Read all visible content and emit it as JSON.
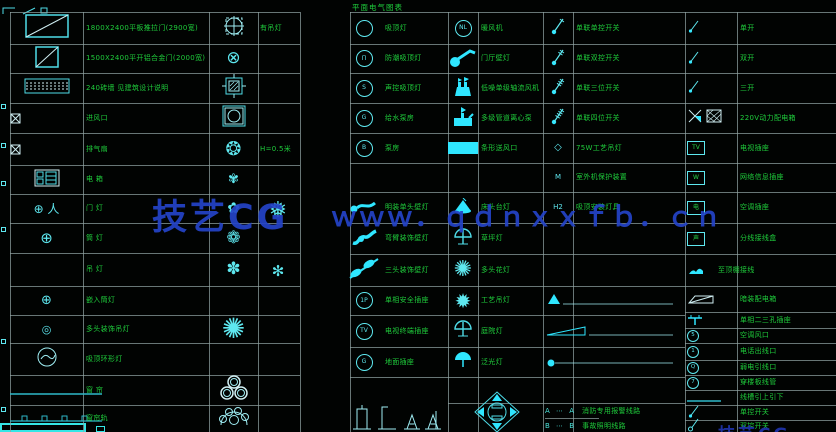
{
  "title": "平面电气图表",
  "watermark": {
    "brand": "技艺CG",
    "url": "ｗｗｗ．ｑｄｎｘｘｆｂ．ｃｎ",
    "color": "#2444c8"
  },
  "corner_text": "技艺CG",
  "colors": {
    "background": "#010302",
    "grid": "#90a4a4",
    "label_green": "#1fce3c",
    "symbol_cyan": "#5ee8f0",
    "symbol_fill": "#2fe6ff",
    "watermark_blue": "#2444c8"
  },
  "left_rows": [
    {
      "s1": {
        "shape": "rectDiagL"
      },
      "d1": "1800X2400平板推拉门(2900宽)",
      "s2": {
        "shape": "circleCrossSq"
      },
      "d2": "有吊灯"
    },
    {
      "s1": {
        "shape": "rectDiagS"
      },
      "d1": "1500X2400平开铝合金门(2000宽)",
      "s2": {
        "glyph": "⊗",
        "size": 17
      },
      "d2": ""
    },
    {
      "s1": {
        "shape": "hatch"
      },
      "d1": "240砖墙 见建筑设计说明",
      "s2": {
        "shape": "frameBox"
      },
      "d2": ""
    },
    {
      "s1": {
        "shape": "boxX",
        "left": true
      },
      "d1": "进风口",
      "s2": {
        "shape": "boxCircle"
      },
      "d2": ""
    },
    {
      "s1": {
        "shape": "boxX",
        "left": true
      },
      "d1": "排气扇",
      "s2": {
        "glyph": "❂",
        "size": 19
      },
      "d2": "H=0.5米"
    },
    {
      "s1": {
        "shape": "panel"
      },
      "d1": "电  箱",
      "s2": {
        "glyph": "✾",
        "size": 13
      },
      "d2": ""
    },
    {
      "s1": {
        "glyph": "⊕ 人",
        "size": 12
      },
      "d1": "门  灯",
      "s2": {
        "glyph": "✿",
        "size": 15
      },
      "d2": "",
      "d2g": {
        "glyph": "❅",
        "size": 22
      }
    },
    {
      "s1": {
        "glyph": "⊕",
        "size": 15
      },
      "d1": "筒  灯",
      "s2": {
        "glyph": "❁",
        "size": 17
      },
      "d2": ""
    },
    {
      "s1": null,
      "d1": "吊  灯",
      "s2": {
        "glyph": "✽",
        "size": 17
      },
      "d2": "",
      "d2g": {
        "glyph": "✻",
        "size": 15
      }
    },
    {
      "s1": {
        "glyph": "⊕",
        "size": 13
      },
      "d1": "嵌入筒灯",
      "s2": null,
      "d2": ""
    },
    {
      "s1": {
        "glyph": "◎",
        "size": 11
      },
      "d1": "多头装饰吊灯",
      "s2": {
        "glyph": "✺",
        "size": 28
      },
      "d2": ""
    },
    {
      "s1": {
        "shape": "waveCircle"
      },
      "d1": "吸顶环形灯",
      "s2": null,
      "d2": ""
    },
    {
      "s1": {
        "shape": "tealLine",
        "left": true
      },
      "d1": "窗  帘",
      "s2": {
        "shape": "trefoil"
      },
      "d2": ""
    },
    {
      "s1": {
        "shape": "trackLine",
        "left": true
      },
      "d1": "窗帘轨",
      "s2": {
        "shape": "fanCircles"
      },
      "d2": ""
    }
  ],
  "main_rows": [
    {
      "c1s": {
        "circle": ""
      },
      "c1d": "吸顶灯",
      "c2s": {
        "circle": "NL"
      },
      "c2d": "暖风机",
      "c3s": {
        "shape": "sw1"
      },
      "c3d": "单联单控开关",
      "c4s": {
        "shape": "swS"
      },
      "c4d": "单开"
    },
    {
      "c1s": {
        "circle": "Π"
      },
      "c1d": "防潮吸顶灯",
      "c2s": {
        "shape": "ladle"
      },
      "c2d": "门厅壁灯",
      "c3s": {
        "shape": "sw2"
      },
      "c3d": "单联双控开关",
      "c4s": {
        "shape": "swS"
      },
      "c4d": "双开"
    },
    {
      "c1s": {
        "circle": "S"
      },
      "c1d": "声控吸顶灯",
      "c2s": {
        "shape": "pump"
      },
      "c2d": "低噪单级轴流风机",
      "c3s": {
        "shape": "sw3"
      },
      "c3d": "单联三位开关",
      "c4s": {
        "shape": "swS"
      },
      "c4d": "三开"
    },
    {
      "c1s": {
        "circle": "G"
      },
      "c1d": "给水泵房",
      "c2s": {
        "shape": "pump2"
      },
      "c2d": "多级管道离心泵",
      "c3s": {
        "shape": "sw4"
      },
      "c3d": "单联四位开关",
      "c4s": {
        "shape": "xHatch"
      },
      "c4d": "220V动力配电箱"
    },
    {
      "c1s": {
        "circle": "B"
      },
      "c1d": "泵房",
      "c2s": {
        "shape": "solidRect"
      },
      "c2d": "条形送风口",
      "c3s": {
        "glyph": "◇",
        "size": 10
      },
      "c3d": "75W工艺吊灯",
      "c4s": {
        "box": "TV"
      },
      "c4d": "电视插座"
    },
    {
      "c1s": null,
      "c1d": "",
      "c2s": null,
      "c2d": "",
      "c3s": {
        "text": "M"
      },
      "c3d": "室外机保护装置",
      "c4s": {
        "box": "W"
      },
      "c4d": "网络信息插座"
    },
    {
      "c1s": {
        "shape": "ladleDot"
      },
      "c1d": "明装单头壁灯",
      "c2s": {
        "shape": "cone"
      },
      "c2d": "床头台灯",
      "c3s": {
        "text": "H2"
      },
      "c3d": "吸顶安装灯具",
      "c4s": {
        "box": "电"
      },
      "c4d": "空调插座"
    },
    {
      "c1s": {
        "shape": "curveBlob"
      },
      "c1d": "弯臂装饰壁灯",
      "c2s": {
        "shape": "umbrella"
      },
      "c2d": "草坪灯",
      "c3s": null,
      "c3d": "",
      "c4s": {
        "box": "声"
      },
      "c4d": "分线接线盒"
    },
    {
      "c1s": {
        "shape": "dblBlob"
      },
      "c1d": "三头装饰壁灯",
      "c2s": {
        "glyph": "✺",
        "size": 22
      },
      "c2d": "多头花灯",
      "c3s": null,
      "c3d": "",
      "c4s": {
        "shape": "bird"
      },
      "c4d": "至顶棚接线",
      "c4dx": 718
    }
  ],
  "mid_rows": [
    {
      "c1s": {
        "circle": "1P"
      },
      "c1d": "单相安全插座",
      "c2s": {
        "glyph": "✹",
        "size": 20
      },
      "c2d": "工艺吊灯",
      "c3s": {
        "shape": "triLine"
      }
    },
    {
      "c1s": {
        "circle": "TV"
      },
      "c1d": "电视终端插座",
      "c2s": {
        "shape": "umbrella"
      },
      "c2d": "庭院灯",
      "c3s": {
        "shape": "wedgeLine"
      }
    },
    {
      "c1s": {
        "circle": "G"
      },
      "c1d": "地面插座",
      "c2s": {
        "shape": "umbrella2"
      },
      "c2d": "泛光灯",
      "c3s": {
        "shape": "dotLine"
      }
    }
  ],
  "right_rows": [
    {
      "s": {
        "shape": "slopeBox"
      },
      "d": "暗装配电箱"
    },
    {
      "s": {
        "shape": "plugT"
      },
      "d": "单相二三孔插座"
    },
    {
      "s": {
        "circleSmall": "5"
      },
      "d": "空调风口"
    },
    {
      "s": {
        "circleSmall": "1"
      },
      "d": "电话出线口"
    },
    {
      "s": {
        "circleSmall": "Q"
      },
      "d": "弱电引线口"
    },
    {
      "s": {
        "circleSmall": "7"
      },
      "d": "穿楼板线管"
    },
    {
      "s": {
        "shape": "hLineSym"
      },
      "d": "线槽引上引下"
    },
    {
      "s": {
        "shape": "swS"
      },
      "d": "单控开关"
    },
    {
      "s": {
        "shape": "swSO"
      },
      "d": "双控开关"
    }
  ],
  "bottom": {
    "lineA": {
      "label": "A ⋯ A",
      "desc": "消防专用报警线路"
    },
    "lineB": {
      "label": "B ⋯ B",
      "desc": "事故照明线路"
    }
  }
}
